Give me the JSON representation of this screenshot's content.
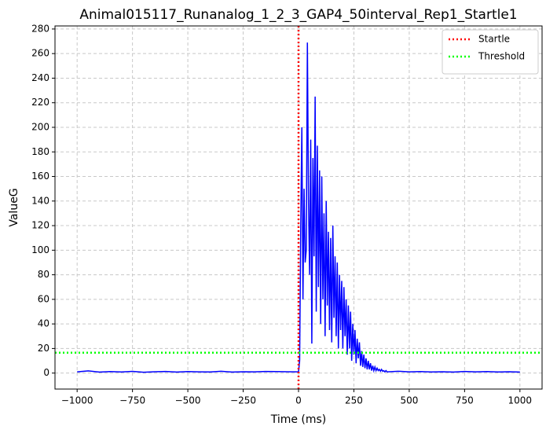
{
  "chart_data": {
    "type": "line",
    "title": "Animal015117_Runanalog_1_2_3_GAP4_50interval_Rep1_Startle1",
    "x_label": "Time (ms)",
    "y_label": "ValueG",
    "x": [
      -1000,
      -950,
      -900,
      -850,
      -800,
      -750,
      -700,
      -650,
      -600,
      -550,
      -500,
      -450,
      -400,
      -350,
      -300,
      -250,
      -200,
      -150,
      -100,
      -50,
      0,
      5,
      10,
      15,
      20,
      25,
      30,
      35,
      40,
      45,
      50,
      55,
      60,
      65,
      70,
      75,
      80,
      85,
      90,
      95,
      100,
      105,
      110,
      115,
      120,
      125,
      130,
      135,
      140,
      145,
      150,
      155,
      160,
      165,
      170,
      175,
      180,
      185,
      190,
      195,
      200,
      205,
      210,
      215,
      220,
      225,
      230,
      235,
      240,
      245,
      250,
      255,
      260,
      265,
      270,
      275,
      280,
      285,
      290,
      295,
      300,
      305,
      310,
      315,
      320,
      325,
      330,
      335,
      340,
      345,
      350,
      355,
      360,
      365,
      370,
      375,
      380,
      385,
      390,
      395,
      400,
      450,
      500,
      550,
      600,
      650,
      700,
      750,
      800,
      850,
      900,
      950,
      1000
    ],
    "series": [
      {
        "color": "#0000ff",
        "values": [
          1,
          1.8,
          0.8,
          1.2,
          0.9,
          1.4,
          0.7,
          1.1,
          1.3,
          0.8,
          1.2,
          1,
          0.9,
          1.5,
          0.8,
          1.1,
          1,
          1.3,
          1.2,
          1.1,
          1,
          10,
          120,
          200,
          60,
          150,
          90,
          100,
          269,
          140,
          80,
          190,
          24,
          175,
          95,
          225,
          50,
          185,
          70,
          165,
          40,
          160,
          60,
          130,
          30,
          140,
          55,
          115,
          35,
          110,
          25,
          120,
          45,
          95,
          30,
          90,
          20,
          80,
          35,
          75,
          20,
          70,
          30,
          60,
          15,
          55,
          20,
          50,
          10,
          40,
          15,
          35,
          8,
          28,
          12,
          25,
          6,
          18,
          5,
          15,
          4,
          12,
          3,
          10,
          3,
          8,
          2,
          6,
          2,
          5,
          2,
          4,
          2,
          3,
          1.5,
          3,
          1.5,
          2,
          1,
          2,
          1,
          1.5,
          1,
          1.2,
          0.9,
          1.1,
          0.8,
          1.3,
          1,
          1.2,
          0.9,
          1.1,
          0.8
        ]
      }
    ],
    "reference_lines": [
      {
        "name": "Startle",
        "orientation": "vertical",
        "value": 0,
        "color": "#ff0000"
      },
      {
        "name": "Threshold",
        "orientation": "horizontal",
        "value": 16.6,
        "color": "#00ff00"
      }
    ],
    "xlim": [
      -1100,
      1100
    ],
    "ylim": [
      -13,
      282.5
    ],
    "xticks": [
      {
        "value": -1000,
        "label": "−1000"
      },
      {
        "value": -750,
        "label": "−750"
      },
      {
        "value": -500,
        "label": "−500"
      },
      {
        "value": -250,
        "label": "−250"
      },
      0,
      250,
      500,
      750,
      1000
    ],
    "yticks": [
      0,
      20,
      40,
      60,
      80,
      100,
      120,
      140,
      160,
      180,
      200,
      220,
      240,
      260,
      280
    ],
    "grid": true,
    "legend_position": "upper right"
  }
}
